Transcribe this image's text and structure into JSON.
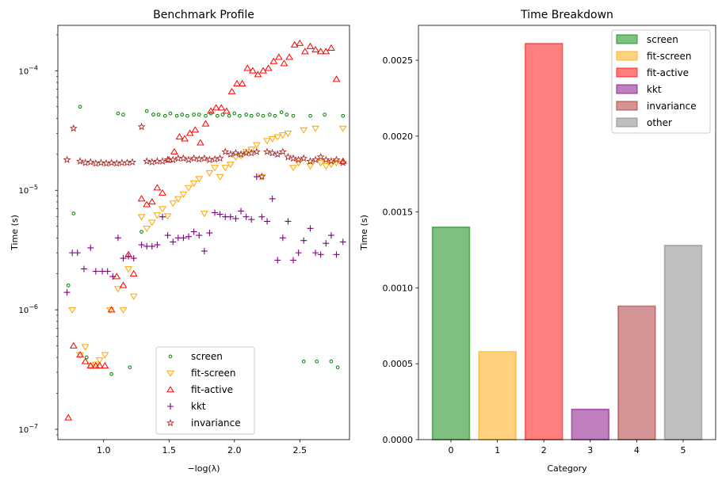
{
  "chart_data": [
    {
      "type": "scatter",
      "title": "Benchmark Profile",
      "xlabel": "−log(λ)",
      "ylabel": "Time (s)",
      "yscale": "log",
      "xlim": [
        0.65,
        2.88
      ],
      "ylim": [
        8.2e-08,
        0.00024
      ],
      "xticks": [
        1.0,
        1.5,
        2.0,
        2.5
      ],
      "xtick_labels": [
        "1.0",
        "1.5",
        "2.0",
        "2.5"
      ],
      "yticks": [
        1e-07,
        1e-06,
        1e-05,
        0.0001
      ],
      "ytick_labels": [
        "10^-7",
        "10^-6",
        "10^-5",
        "10^-4"
      ],
      "legend_position": "lower center",
      "series": [
        {
          "name": "screen",
          "marker": "circle",
          "color": "#008000",
          "x": [
            0.73,
            0.77,
            0.82,
            0.87,
            1.06,
            1.11,
            1.15,
            1.2,
            1.29,
            1.33,
            1.38,
            1.42,
            1.47,
            1.51,
            1.56,
            1.6,
            1.64,
            1.69,
            1.73,
            1.78,
            1.82,
            1.87,
            1.91,
            1.96,
            2.0,
            2.04,
            2.09,
            2.13,
            2.18,
            2.22,
            2.27,
            2.31,
            2.36,
            2.4,
            2.45,
            2.53,
            2.58,
            2.63,
            2.69,
            2.74,
            2.79,
            2.83
          ],
          "y": [
            1.6e-06,
            6.4e-06,
            5e-05,
            4e-07,
            2.9e-07,
            4.4e-05,
            4.3e-05,
            3.3e-07,
            4.5e-06,
            4.6e-05,
            4.3e-05,
            4.3e-05,
            4.2e-05,
            4.4e-05,
            4.2e-05,
            4.3e-05,
            4.2e-05,
            4.3e-05,
            4.3e-05,
            4.2e-05,
            4.4e-05,
            4.2e-05,
            4.3e-05,
            4.2e-05,
            4.4e-05,
            4.2e-05,
            4.3e-05,
            4.2e-05,
            4.3e-05,
            4.2e-05,
            4.3e-05,
            4.2e-05,
            4.5e-05,
            4.3e-05,
            4.2e-05,
            3.7e-07,
            4.2e-05,
            3.7e-07,
            4.3e-05,
            3.7e-07,
            3.3e-07,
            4.2e-05
          ]
        },
        {
          "name": "fit-screen",
          "marker": "triangle-down",
          "color": "#FFA500",
          "x": [
            0.76,
            0.82,
            0.86,
            0.9,
            0.94,
            0.97,
            1.01,
            1.05,
            1.11,
            1.15,
            1.19,
            1.23,
            1.29,
            1.33,
            1.37,
            1.41,
            1.45,
            1.49,
            1.53,
            1.57,
            1.61,
            1.65,
            1.69,
            1.73,
            1.77,
            1.81,
            1.85,
            1.89,
            1.93,
            1.97,
            2.01,
            2.05,
            2.09,
            2.13,
            2.17,
            2.21,
            2.25,
            2.29,
            2.33,
            2.37,
            2.41,
            2.45,
            2.49,
            2.53,
            2.58,
            2.62,
            2.66,
            2.7,
            2.74,
            2.78,
            2.83
          ],
          "y": [
            1e-06,
            4.2e-07,
            4.9e-07,
            3.4e-07,
            3.5e-07,
            3.8e-07,
            4.2e-07,
            1e-06,
            1.5e-06,
            1e-06,
            2.2e-06,
            1.3e-06,
            6e-06,
            4.8e-06,
            5.4e-06,
            6.2e-06,
            7e-06,
            6.1e-06,
            7.8e-06,
            8.5e-06,
            9.3e-06,
            1.05e-05,
            1.15e-05,
            1.25e-05,
            6.4e-06,
            1.4e-05,
            1.55e-05,
            1.3e-05,
            1.55e-05,
            1.65e-05,
            1.9e-05,
            1.95e-05,
            2.1e-05,
            2.2e-05,
            2.4e-05,
            1.3e-05,
            2.6e-05,
            2.7e-05,
            2.8e-05,
            2.9e-05,
            3e-05,
            1.55e-05,
            1.7e-05,
            3.2e-05,
            1.6e-05,
            3.3e-05,
            1.7e-05,
            1.6e-05,
            1.65e-05,
            1.7e-05,
            3.3e-05
          ]
        },
        {
          "name": "fit-active",
          "marker": "triangle-up",
          "color": "#FF0000",
          "x": [
            0.73,
            0.77,
            0.82,
            0.86,
            0.9,
            0.94,
            0.97,
            1.01,
            1.06,
            1.1,
            1.15,
            1.19,
            1.23,
            1.29,
            1.33,
            1.37,
            1.41,
            1.45,
            1.5,
            1.54,
            1.58,
            1.62,
            1.66,
            1.7,
            1.74,
            1.78,
            1.82,
            1.86,
            1.9,
            1.94,
            1.98,
            2.02,
            2.06,
            2.1,
            2.14,
            2.18,
            2.22,
            2.26,
            2.3,
            2.34,
            2.38,
            2.42,
            2.46,
            2.5,
            2.54,
            2.58,
            2.62,
            2.66,
            2.7,
            2.74,
            2.78,
            2.83
          ],
          "y": [
            1.25e-07,
            5e-07,
            4.2e-07,
            3.7e-07,
            3.4e-07,
            3.4e-07,
            3.4e-07,
            3.4e-07,
            1e-06,
            1.9e-06,
            1.6e-06,
            2.9e-06,
            2e-06,
            8.5e-06,
            7.6e-06,
            8e-06,
            1.05e-05,
            9.5e-06,
            1.8e-05,
            2.1e-05,
            2.8e-05,
            2.7e-05,
            3e-05,
            3.2e-05,
            2.5e-05,
            3.6e-05,
            4.6e-05,
            4.9e-05,
            4.9e-05,
            4.6e-05,
            6.7e-05,
            7.8e-05,
            7.8e-05,
            0.000105,
            0.0001,
            9.3e-05,
            0.0001,
            0.000105,
            0.00012,
            0.00013,
            0.000115,
            0.00013,
            0.000165,
            0.00017,
            0.000145,
            0.00016,
            0.00015,
            0.000145,
            0.000145,
            0.000155,
            8.5e-05,
            1.75e-05
          ]
        },
        {
          "name": "kkt",
          "marker": "plus",
          "color": "#800080",
          "x": [
            0.72,
            0.76,
            0.8,
            0.85,
            0.9,
            0.94,
            0.99,
            1.03,
            1.07,
            1.11,
            1.15,
            1.19,
            1.23,
            1.29,
            1.33,
            1.37,
            1.41,
            1.45,
            1.49,
            1.53,
            1.57,
            1.61,
            1.65,
            1.69,
            1.73,
            1.77,
            1.81,
            1.85,
            1.89,
            1.93,
            1.97,
            2.01,
            2.05,
            2.09,
            2.13,
            2.17,
            2.21,
            2.25,
            2.29,
            2.33,
            2.37,
            2.41,
            2.45,
            2.49,
            2.53,
            2.58,
            2.62,
            2.66,
            2.7,
            2.74,
            2.78,
            2.83
          ],
          "y": [
            1.4e-06,
            3e-06,
            3e-06,
            2.2e-06,
            3.3e-06,
            2.1e-06,
            2.1e-06,
            2.1e-06,
            1.9e-06,
            4e-06,
            2.7e-06,
            2.8e-06,
            2.7e-06,
            3.5e-06,
            3.4e-06,
            3.4e-06,
            3.5e-06,
            6e-06,
            4.2e-06,
            3.7e-06,
            4e-06,
            4e-06,
            4.1e-06,
            4.5e-06,
            4.2e-06,
            3.1e-06,
            4.4e-06,
            6.5e-06,
            6.3e-06,
            6e-06,
            6e-06,
            5.8e-06,
            6.7e-06,
            6e-06,
            5.7e-06,
            1.3e-05,
            6e-06,
            5.5e-06,
            8.5e-06,
            2.6e-06,
            4e-06,
            5.5e-06,
            2.6e-06,
            3e-06,
            3.8e-06,
            4.8e-06,
            3e-06,
            2.9e-06,
            3.6e-06,
            4.2e-06,
            2.9e-06,
            3.7e-06
          ]
        },
        {
          "name": "invariance",
          "marker": "star",
          "color": "#A52A2A",
          "x": [
            0.72,
            0.77,
            0.82,
            0.86,
            0.9,
            0.94,
            0.98,
            1.02,
            1.06,
            1.1,
            1.14,
            1.18,
            1.22,
            1.29,
            1.33,
            1.37,
            1.41,
            1.45,
            1.49,
            1.53,
            1.57,
            1.61,
            1.65,
            1.69,
            1.73,
            1.77,
            1.81,
            1.85,
            1.89,
            1.93,
            1.97,
            2.01,
            2.05,
            2.09,
            2.13,
            2.17,
            2.21,
            2.25,
            2.29,
            2.33,
            2.37,
            2.41,
            2.45,
            2.49,
            2.53,
            2.58,
            2.62,
            2.66,
            2.7,
            2.74,
            2.78,
            2.83
          ],
          "y": [
            1.8e-05,
            3.3e-05,
            1.75e-05,
            1.7e-05,
            1.72e-05,
            1.68e-05,
            1.7e-05,
            1.68e-05,
            1.7e-05,
            1.68e-05,
            1.7e-05,
            1.7e-05,
            1.72e-05,
            3.4e-05,
            1.75e-05,
            1.72e-05,
            1.75e-05,
            1.75e-05,
            1.8e-05,
            1.8e-05,
            1.85e-05,
            1.85e-05,
            1.8e-05,
            1.85e-05,
            1.82e-05,
            1.85e-05,
            1.8e-05,
            1.82e-05,
            1.85e-05,
            2.1e-05,
            2e-05,
            2.05e-05,
            2e-05,
            2.05e-05,
            2.05e-05,
            2.1e-05,
            1.3e-05,
            2.1e-05,
            2.05e-05,
            2e-05,
            2.1e-05,
            1.9e-05,
            1.85e-05,
            1.8e-05,
            1.85e-05,
            1.75e-05,
            1.8e-05,
            1.9e-05,
            1.8e-05,
            1.75e-05,
            1.8e-05,
            1.7e-05
          ]
        }
      ]
    },
    {
      "type": "bar",
      "title": "Time Breakdown",
      "xlabel": "Category",
      "ylabel": "Time (s)",
      "ylim": [
        0,
        0.00273
      ],
      "categories": [
        "0",
        "1",
        "2",
        "3",
        "4",
        "5"
      ],
      "yticks": [
        0.0,
        0.0005,
        0.001,
        0.0015,
        0.002,
        0.0025
      ],
      "ytick_labels": [
        "0.0000",
        "0.0005",
        "0.0010",
        "0.0015",
        "0.0020",
        "0.0025"
      ],
      "legend_position": "top-right",
      "bars": [
        {
          "name": "screen",
          "value": 0.0014,
          "color": "#008000"
        },
        {
          "name": "fit-screen",
          "value": 0.00058,
          "color": "#FFA500"
        },
        {
          "name": "fit-active",
          "value": 0.00261,
          "color": "#FF0000"
        },
        {
          "name": "kkt",
          "value": 0.0002,
          "color": "#800080"
        },
        {
          "name": "invariance",
          "value": 0.00088,
          "color": "#A52A2A"
        },
        {
          "name": "other",
          "value": 0.00128,
          "color": "#808080"
        }
      ]
    }
  ]
}
